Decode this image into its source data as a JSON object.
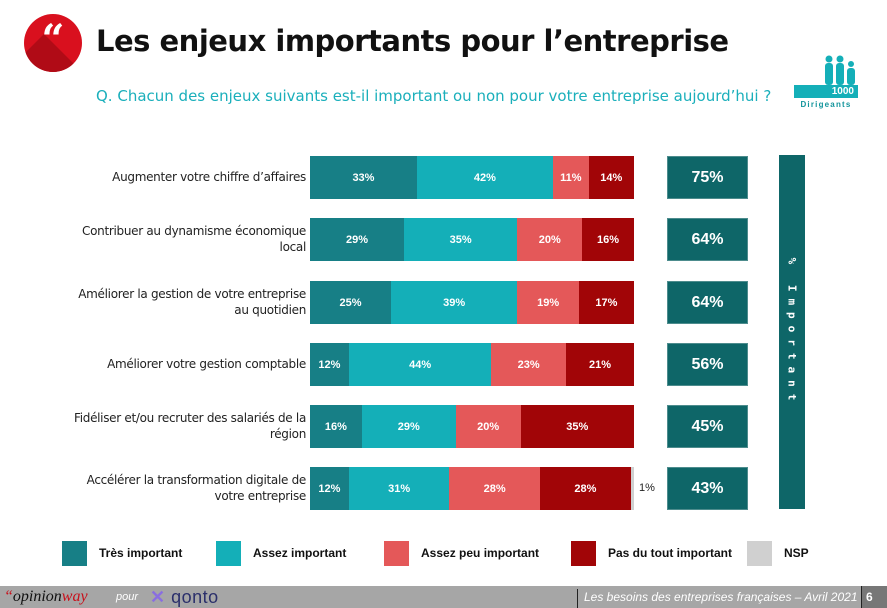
{
  "header": {
    "icon": "quote-icon",
    "quote_glyph": "“",
    "title": "Les enjeux importants pour l’entreprise",
    "question": "Q. Chacun des enjeux suivants est-il important ou non pour votre entreprise aujourd’hui ?"
  },
  "badge": {
    "icon": "people-icon",
    "count": "1000",
    "label": "Dirigeants"
  },
  "side_band_label": "% Important",
  "colors": {
    "tres_important": "#177f86",
    "assez_important": "#14afb8",
    "assez_peu_important": "#e45859",
    "pas_du_tout_important": "#a10507",
    "nsp": "#d0d0d0",
    "total": "#0e6668",
    "brand_red": "#d9101e"
  },
  "chart_data": {
    "type": "bar",
    "orientation": "horizontal-stacked-100",
    "title": "Les enjeux importants pour l’entreprise",
    "subtitle": "Q. Chacun des enjeux suivants est-il important ou non pour votre entreprise aujourd’hui ?",
    "xlabel": "",
    "ylabel": "",
    "xlim": [
      0,
      100
    ],
    "legend_position": "bottom",
    "categories": [
      "Augmenter votre chiffre d’affaires",
      "Contribuer au dynamisme économique local",
      "Améliorer la gestion de votre entreprise au quotidien",
      "Améliorer votre gestion comptable",
      "Fidéliser et/ou recruter des salariés de la région",
      "Accélérer la transformation digitale de votre entreprise"
    ],
    "category_lines": [
      [
        "Augmenter votre chiffre d’affaires"
      ],
      [
        "Contribuer au dynamisme économique",
        "local"
      ],
      [
        "Améliorer la gestion de votre entreprise",
        "au quotidien"
      ],
      [
        "Améliorer votre gestion comptable"
      ],
      [
        "Fidéliser et/ou recruter des salariés de la",
        "région"
      ],
      [
        "Accélérer la transformation digitale de",
        "votre entreprise"
      ]
    ],
    "series": [
      {
        "name": "Très important",
        "key": "tres_important",
        "values": [
          33,
          29,
          25,
          12,
          16,
          12
        ]
      },
      {
        "name": "Assez important",
        "key": "assez_important",
        "values": [
          42,
          35,
          39,
          44,
          29,
          31
        ]
      },
      {
        "name": "Assez peu important",
        "key": "assez_peu_important",
        "values": [
          11,
          20,
          19,
          23,
          20,
          28
        ]
      },
      {
        "name": "Pas du tout important",
        "key": "pas_du_tout_important",
        "values": [
          14,
          16,
          17,
          21,
          35,
          28
        ]
      },
      {
        "name": "NSP",
        "key": "nsp",
        "values": [
          0,
          0,
          0,
          0,
          0,
          1
        ]
      }
    ],
    "totals_label": "% Important",
    "totals": [
      75,
      64,
      64,
      56,
      45,
      43
    ]
  },
  "footer": {
    "brand_quote": "“",
    "brand_opinion": "opinion",
    "brand_way": "way",
    "pour": "pour",
    "partner_mark": "✕",
    "partner": "qonto",
    "caption": "Les besoins des entreprises françaises – Avril 2021",
    "page": "6"
  }
}
